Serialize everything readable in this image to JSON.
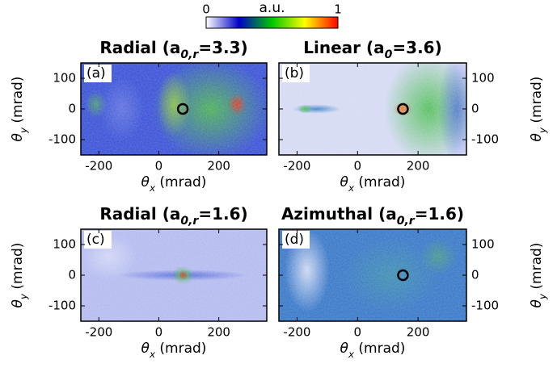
{
  "colorbar": {
    "label": "a.u.",
    "lim": [
      0,
      1
    ],
    "ticks": [
      0,
      1
    ],
    "colors": [
      "#ffffff",
      "#0000c8",
      "#00c800",
      "#ffff00",
      "#ff0000"
    ]
  },
  "chart_data": [
    {
      "type": "heatmap",
      "panel": "(a)",
      "title": [
        "Radial (a",
        "0,r",
        "=3.3)"
      ],
      "xlabel": [
        "θ",
        "x",
        " (mrad)"
      ],
      "ylabel": [
        "θ",
        "y",
        " (mrad)"
      ],
      "xlim": [
        -260,
        360
      ],
      "ylim": [
        -150,
        150
      ],
      "xticks": [
        -200,
        0,
        200
      ],
      "yticks": [
        -100,
        0,
        100
      ],
      "marker": {
        "x": 80,
        "y": 0
      }
    },
    {
      "type": "heatmap",
      "panel": "(b)",
      "title": [
        "Linear (a",
        "0",
        "=3.6)"
      ],
      "xlabel": [
        "θ",
        "x",
        " (mrad)"
      ],
      "ylabel": [
        "θ",
        "y",
        " (mrad)"
      ],
      "xlim": [
        -260,
        360
      ],
      "ylim": [
        -150,
        150
      ],
      "xticks": [
        -200,
        0,
        200
      ],
      "yticks": [
        -100,
        0,
        100
      ],
      "marker": {
        "x": 150,
        "y": 0
      }
    },
    {
      "type": "heatmap",
      "panel": "(c)",
      "title": [
        "Radial (a",
        "0,r",
        "=1.6)"
      ],
      "xlabel": [
        "θ",
        "x",
        " (mrad)"
      ],
      "ylabel": [
        "θ",
        "y",
        " (mrad)"
      ],
      "xlim": [
        -260,
        360
      ],
      "ylim": [
        -150,
        150
      ],
      "xticks": [
        -200,
        0,
        200
      ],
      "yticks": [
        -100,
        0,
        100
      ]
    },
    {
      "type": "heatmap",
      "panel": "(d)",
      "title": [
        "Azimuthal (a",
        "0,r",
        "=1.6)"
      ],
      "xlabel": [
        "θ",
        "x",
        " (mrad)"
      ],
      "ylabel": [
        "θ",
        "y",
        " (mrad)"
      ],
      "xlim": [
        -260,
        360
      ],
      "ylim": [
        -150,
        150
      ],
      "xticks": [
        -200,
        0,
        200
      ],
      "yticks": [
        -100,
        0,
        100
      ],
      "marker": {
        "x": 150,
        "y": 0
      }
    }
  ]
}
